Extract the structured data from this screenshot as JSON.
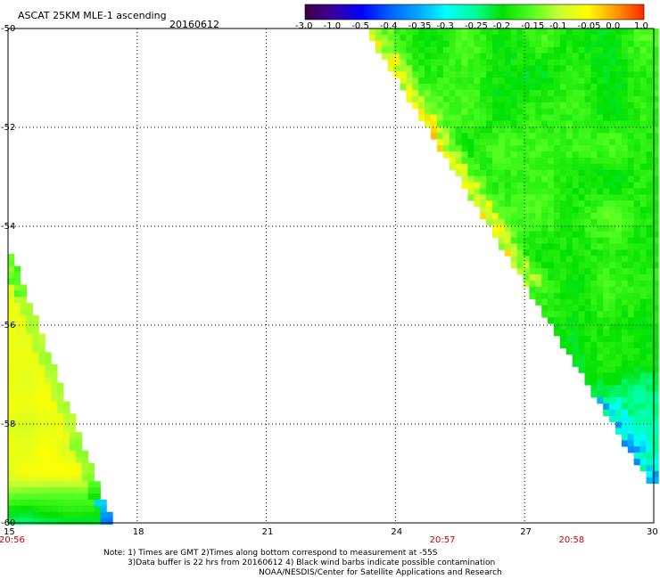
{
  "header": {
    "title": "ASCAT 25KM MLE-1 ascending",
    "date": "20160612"
  },
  "colorbar": {
    "tick_labels": [
      "-3.0",
      "-1.0",
      "-0.5",
      "-0.4",
      "-0.35",
      "-0.3",
      "-0.25",
      "-0.2",
      "-0.15",
      "-0.1",
      "-0.05",
      "0.0",
      "1.0"
    ],
    "colors": [
      "#3a0040",
      "#3a00a0",
      "#0000ff",
      "#0060ff",
      "#00a8ff",
      "#00ffff",
      "#00ff99",
      "#00e000",
      "#50ff20",
      "#c8ff30",
      "#ffff00",
      "#ff9a00",
      "#ff2800"
    ]
  },
  "map": {
    "lat_labels": [
      "-50",
      "-52",
      "-54",
      "-56",
      "-58",
      "-60"
    ],
    "lon_labels": [
      "15",
      "18",
      "21",
      "24",
      "27",
      "30"
    ],
    "time_labels": [
      {
        "text": "20:56",
        "lon": "15"
      },
      {
        "text": "20:57",
        "lon": "25"
      },
      {
        "text": "20:58",
        "lon": "28"
      }
    ],
    "ocean_color": "#ffffff",
    "grid": "dotted"
  },
  "notes": {
    "line1": "Note: 1) Times are GMT 2)Times along bottom correspond to measurement at -55S",
    "line2": "3)Data buffer is 22 hrs from 20160612 4) Black wind barbs indicate possible contamination",
    "line3": "NOAA/NESDIS/Center for Satellite Applications and Research"
  }
}
